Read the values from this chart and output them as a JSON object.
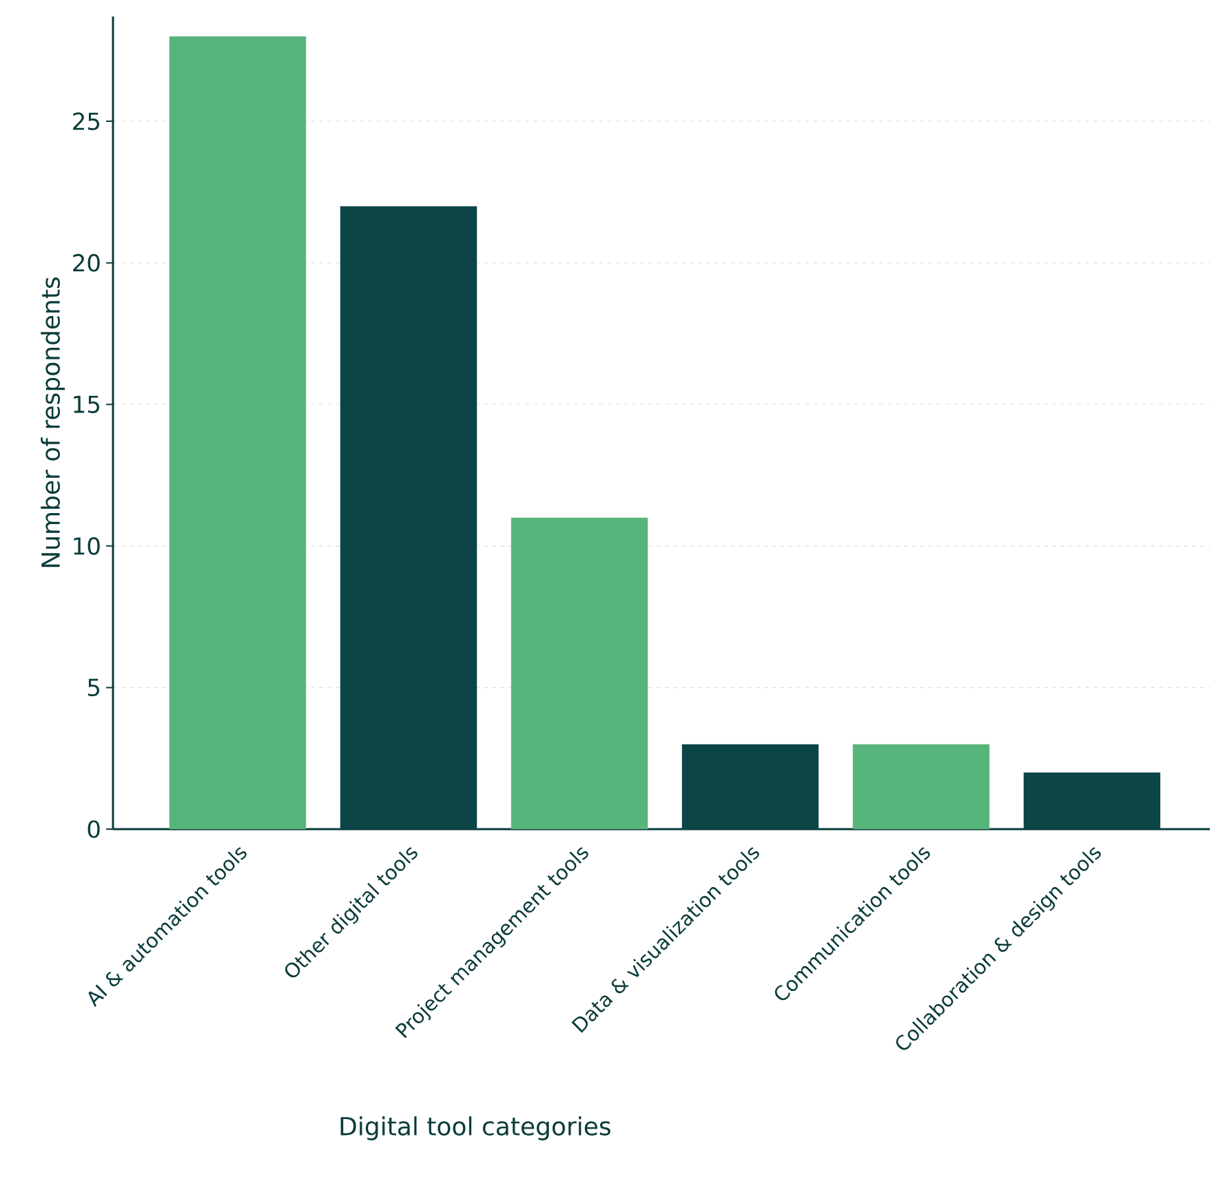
{
  "chart_data": {
    "type": "bar",
    "xlabel": "Digital tool categories",
    "ylabel": "Number of respondents",
    "categories": [
      "AI & automation tools",
      "Other digital tools",
      "Project management tools",
      "Data & visualization tools",
      "Communication tools",
      "Collaboration & design tools"
    ],
    "values": [
      28,
      22,
      11,
      3,
      3,
      2
    ],
    "colors": [
      "#57b57c",
      "#0b4545",
      "#57b57c",
      "#0b4545",
      "#57b57c",
      "#0b4545"
    ],
    "ylim": [
      0,
      28.7
    ],
    "yticks": [
      0,
      5,
      10,
      15,
      20,
      25
    ],
    "grid": "y"
  }
}
